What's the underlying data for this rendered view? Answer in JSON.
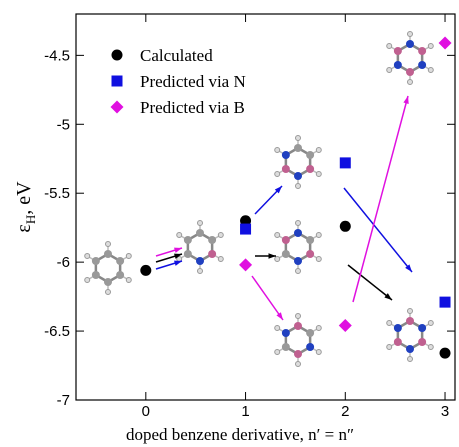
{
  "chart_data": {
    "type": "scatter",
    "x_label": "doped benzene derivative, n′ = n″",
    "y_label": {
      "symbol": "ε",
      "subscript": "H",
      "unit": ", eV"
    },
    "xlim": [
      -0.7,
      3.1
    ],
    "ylim": [
      -7,
      -4.2
    ],
    "xticks": [
      0,
      1,
      2,
      3
    ],
    "yticks": [
      -7,
      -6.5,
      -6,
      -5.5,
      -5,
      -4.5
    ],
    "legend": "upper left",
    "series": [
      {
        "name": "Calculated",
        "color": "#000000",
        "marker": "circle",
        "x": [
          0,
          1,
          2,
          3
        ],
        "values": [
          -6.06,
          -5.7,
          -5.74,
          -6.66
        ]
      },
      {
        "name": "Predicted via N",
        "color": "#1010e0",
        "marker": "square",
        "x": [
          1,
          2,
          3
        ],
        "values": [
          -5.76,
          -5.28,
          -6.29
        ]
      },
      {
        "name": "Predicted via B",
        "color": "#e010e0",
        "marker": "diamond",
        "x": [
          1,
          2,
          3
        ],
        "values": [
          -6.02,
          -6.46,
          -4.41
        ]
      }
    ]
  }
}
